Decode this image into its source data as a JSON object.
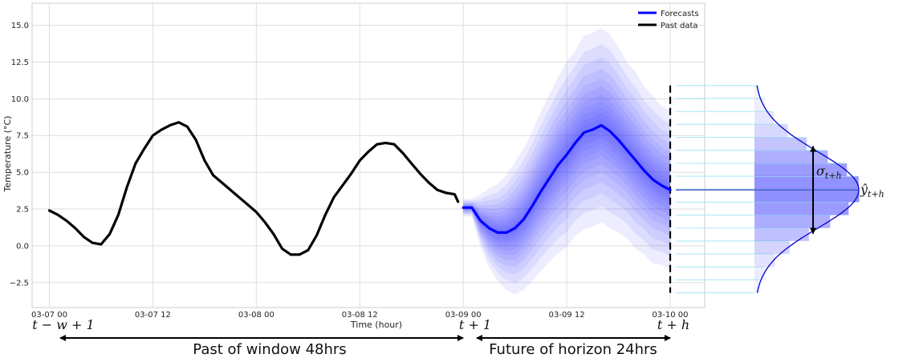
{
  "chart_data": {
    "type": "line",
    "title": "",
    "xlabel": "Time (hour)",
    "ylabel": "Temperature (°C)",
    "x_range_hours": [
      -2,
      76
    ],
    "ylim": [
      -4.2,
      16.5
    ],
    "xticks": [
      {
        "hour": 0,
        "label": "03-07 00"
      },
      {
        "hour": 12,
        "label": "03-07 12"
      },
      {
        "hour": 24,
        "label": "03-08 00"
      },
      {
        "hour": 36,
        "label": "03-08 12"
      },
      {
        "hour": 48,
        "label": "03-09 00"
      },
      {
        "hour": 60,
        "label": "03-09 12"
      },
      {
        "hour": 72,
        "label": "03-10 00"
      }
    ],
    "yticks": [
      {
        "value": -2.5,
        "label": "−2.5"
      },
      {
        "value": 0.0,
        "label": "0.0"
      },
      {
        "value": 2.5,
        "label": "2.5"
      },
      {
        "value": 5.0,
        "label": "5.0"
      },
      {
        "value": 7.5,
        "label": "7.5"
      },
      {
        "value": 10.0,
        "label": "10.0"
      },
      {
        "value": 12.5,
        "label": "12.5"
      },
      {
        "value": 15.0,
        "label": "15.0"
      }
    ],
    "grid": true,
    "legend_position": "top-right",
    "series": [
      {
        "name": "Past data",
        "color": "#000000",
        "x": [
          0,
          1,
          2,
          3,
          4,
          5,
          6,
          7,
          8,
          9,
          10,
          11,
          12,
          13,
          14,
          15,
          16,
          17,
          18,
          19,
          20,
          21,
          22,
          23,
          24,
          25,
          26,
          27,
          28,
          29,
          30,
          31,
          32,
          33,
          34,
          35,
          36,
          37,
          38,
          39,
          40,
          41,
          42,
          43,
          44,
          45,
          46,
          47
        ],
        "values": [
          2.4,
          2.1,
          1.7,
          1.2,
          0.6,
          0.2,
          0.1,
          0.8,
          2.1,
          4.0,
          5.6,
          6.6,
          7.5,
          7.9,
          8.2,
          8.4,
          8.1,
          7.2,
          5.8,
          4.8,
          4.3,
          3.8,
          3.3,
          2.8,
          2.3,
          1.6,
          0.8,
          -0.2,
          -0.6,
          -0.6,
          -0.3,
          0.7,
          2.1,
          3.3,
          4.1,
          4.9,
          5.8,
          6.4,
          6.9,
          7.0,
          6.9,
          6.3,
          5.6,
          4.9,
          4.3,
          3.8,
          3.6,
          3.5
        ]
      },
      {
        "name": "Forecasts",
        "color": "#0000ff",
        "x": [
          47,
          48,
          49,
          50,
          51,
          52,
          53,
          54,
          55,
          56,
          57,
          58,
          59,
          60,
          61,
          62,
          63,
          64,
          65,
          66,
          67,
          68,
          69,
          70,
          71,
          72
        ],
        "values": [
          3.0,
          2.6,
          2.6,
          1.7,
          1.2,
          0.9,
          0.9,
          1.2,
          1.8,
          2.7,
          3.7,
          4.6,
          5.5,
          6.2,
          7.0,
          7.7,
          7.9,
          8.2,
          7.8,
          7.2,
          6.5,
          5.8,
          5.1,
          4.5,
          4.1,
          3.8
        ]
      }
    ],
    "forecast_band_sigma": [
      0.2,
      0.2,
      0.6,
      0.9,
      1.1,
      1.3,
      1.5,
      1.6,
      1.7,
      1.8,
      1.9,
      2.0,
      2.1,
      2.1,
      2.2,
      2.2,
      2.2,
      2.2,
      2.1,
      2.0,
      2.0,
      1.9,
      1.9,
      1.8,
      1.8
    ],
    "forecast_band_color": "#3333ff",
    "horizon_line_hour": 72,
    "gaussian": {
      "mean": 3.8,
      "sigma": 2.6,
      "y_range": [
        -3.2,
        10.9
      ],
      "mean_label": "ŷ_{t+h}",
      "sigma_label": "σ_{t+h}"
    }
  },
  "annotations": {
    "t_minus_w": "t − w + 1",
    "t_plus_1": "t + 1",
    "t_plus_h": "t + h",
    "yhat_base": "ŷ",
    "yhat_sub": "t+h",
    "sigma_base": "σ",
    "sigma_sub": "t+h",
    "past_window": "Past of window 48hrs",
    "future_horizon": "Future of horizon 24hrs"
  },
  "legend": {
    "items": [
      {
        "label": "Forecasts",
        "color": "#0000ff"
      },
      {
        "label": "Past data",
        "color": "#000000"
      }
    ]
  }
}
